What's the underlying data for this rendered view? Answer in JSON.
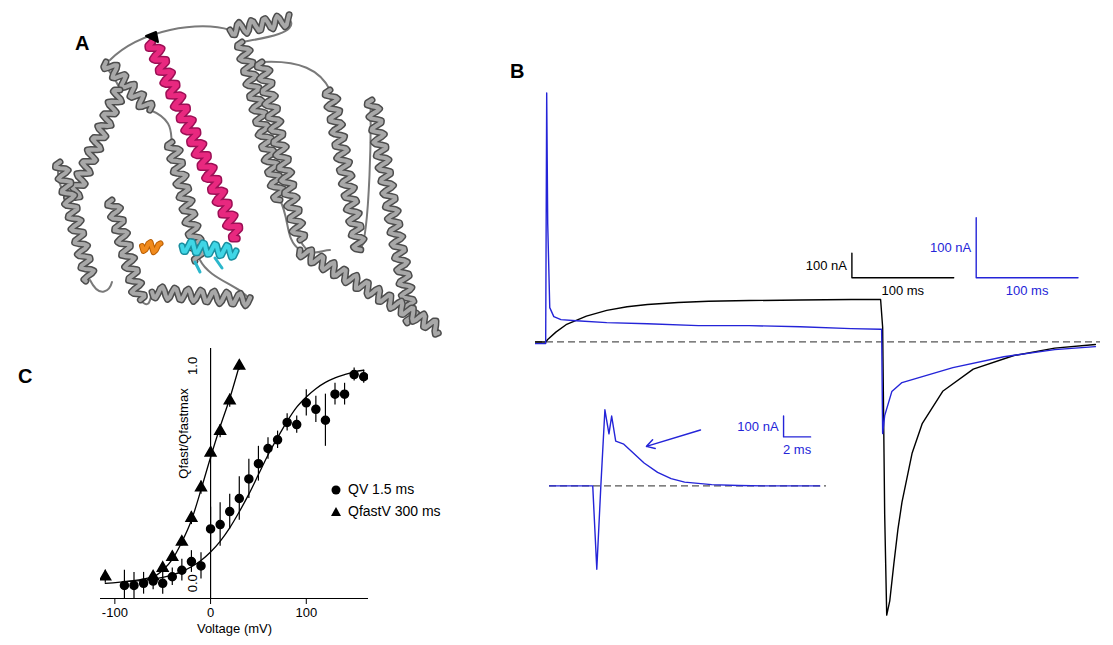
{
  "chart_data": [
    {
      "type": "structure",
      "title": "A"
    },
    {
      "type": "line",
      "title": "B",
      "tick_labels": false,
      "xlim": [
        -10,
        545
      ],
      "ylim": [
        -1150,
        1020
      ],
      "y2lim": [
        -470,
        422
      ],
      "baseline": 0,
      "series": [
        {
          "color": "#000000",
          "x": [
            -10,
            0,
            2,
            10,
            20,
            40,
            60,
            80,
            100,
            130,
            160,
            200,
            250,
            300,
            329,
            331,
            333,
            335,
            338,
            342,
            346,
            350,
            360,
            370,
            390,
            420,
            460,
            500,
            540
          ],
          "values": [
            0,
            0,
            10,
            40,
            70,
            105,
            128,
            143,
            152,
            160,
            165,
            168,
            170,
            172,
            172,
            60,
            -700,
            -1108,
            -1050,
            -900,
            -760,
            -650,
            -450,
            -330,
            -200,
            -110,
            -55,
            -25,
            -10
          ],
          "scale_bar": {
            "x": 100,
            "y": 100,
            "x_label": "100 ms",
            "y_label": "100 nA"
          }
        },
        {
          "color": "#2424d8",
          "axis": "y2",
          "x": [
            -10,
            -1,
            0,
            1,
            2,
            4,
            8,
            15,
            30,
            60,
            100,
            150,
            200,
            250,
            300,
            329,
            330,
            331,
            333,
            340,
            350,
            370,
            400,
            450,
            500,
            540
          ],
          "values": [
            0,
            0,
            0,
            418,
            200,
            60,
            45,
            40,
            38,
            35,
            33,
            30,
            30,
            28,
            25,
            24,
            24,
            -150,
            -120,
            -80,
            -65,
            -55,
            -40,
            -22,
            -10,
            -5
          ],
          "scale_bar": {
            "x": 100,
            "y": 100,
            "x_label": "100 ms",
            "y_label": "100 nA"
          }
        }
      ]
    },
    {
      "type": "line",
      "tick_labels": false,
      "xlim": [
        0,
        20.5
      ],
      "ylim": [
        -425,
        400
      ],
      "baseline": 0,
      "series": [
        {
          "color": "#2424d8",
          "x": [
            0,
            2.5,
            3.2,
            3.5,
            3.8,
            4.1,
            4.4,
            4.6,
            4.9,
            5.5,
            6,
            7,
            8,
            9,
            10,
            12,
            14,
            16,
            20
          ],
          "values": [
            0,
            0,
            0,
            -400,
            0,
            365,
            250,
            335,
            215,
            200,
            170,
            110,
            65,
            35,
            18,
            6,
            2,
            0,
            0
          ],
          "scale_bar": {
            "x": 2,
            "y": 100,
            "x_label": "2 ms",
            "y_label": "100 nA"
          }
        }
      ]
    },
    {
      "type": "scatter",
      "title": "C",
      "xlabel": "Voltage (mV)",
      "ylabel": "Qfast/Qfastmax",
      "xlim": [
        -115,
        165
      ],
      "ylim": [
        -0.07,
        1.08
      ],
      "xticks": [
        -100,
        0,
        100
      ],
      "yticks": [
        {
          "value": 0,
          "label": "0.0"
        },
        {
          "value": 1,
          "label": "1.0"
        }
      ],
      "legend": "right",
      "series": [
        {
          "name": "QV 1.5 ms",
          "marker": "circle",
          "color": "#000000",
          "x": [
            -90,
            -80,
            -70,
            -60,
            -50,
            -40,
            -30,
            -20,
            -10,
            0,
            10,
            20,
            30,
            40,
            50,
            60,
            70,
            80,
            90,
            100,
            110,
            120,
            130,
            140,
            150,
            160
          ],
          "values": [
            -0.01,
            -0.01,
            0.0,
            0.01,
            0.0,
            0.03,
            0.06,
            0.1,
            0.08,
            0.25,
            0.27,
            0.33,
            0.39,
            0.48,
            0.55,
            0.62,
            0.66,
            0.74,
            0.73,
            0.83,
            0.8,
            0.75,
            0.87,
            0.87,
            0.96,
            0.95
          ],
          "errors": [
            0.07,
            0.06,
            0.05,
            0.04,
            0.05,
            0.04,
            0.05,
            0.05,
            0.06,
            0.1,
            0.1,
            0.08,
            0.1,
            0.09,
            0.08,
            0.05,
            0.04,
            0.04,
            0.04,
            0.06,
            0.06,
            0.12,
            0.05,
            0.05,
            0.03,
            0.03
          ],
          "fit": [
            0.007,
            0.01,
            0.013,
            0.019,
            0.027,
            0.039,
            0.054,
            0.076,
            0.105,
            0.144,
            0.193,
            0.255,
            0.329,
            0.41,
            0.5,
            0.59,
            0.67,
            0.745,
            0.81,
            0.857,
            0.895,
            0.924,
            0.945,
            0.96,
            0.973,
            0.98
          ]
        },
        {
          "name": "QfastV 300 ms",
          "marker": "triangle",
          "color": "#000000",
          "x": [
            -110,
            -60,
            -50,
            -40,
            -30,
            -20,
            -10,
            0,
            10,
            20,
            30
          ],
          "values": [
            0.03,
            0.03,
            0.07,
            0.12,
            0.19,
            0.3,
            0.44,
            0.6,
            0.7,
            0.84,
            1.0
          ],
          "errors": [
            0.03,
            0.02,
            0.02,
            0.02,
            0.02,
            0.03,
            0.03,
            0.03,
            0.03,
            0.03,
            0.02
          ],
          "fit": [
            0.0,
            0.03,
            0.06,
            0.11,
            0.19,
            0.29,
            0.43,
            0.58,
            0.72,
            0.85,
            1.0
          ]
        }
      ]
    }
  ]
}
